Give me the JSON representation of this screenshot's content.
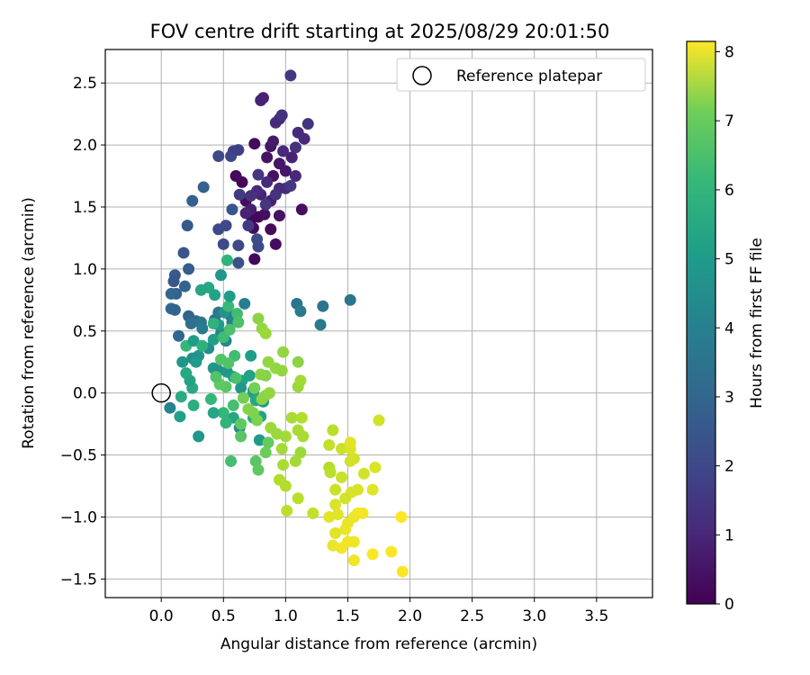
{
  "chart_data": {
    "type": "scatter",
    "title": "FOV centre drift starting at 2025/08/29 20:01:50",
    "xlabel": "Angular distance from reference (arcmin)",
    "ylabel": "Rotation from reference (arcmin)",
    "xlim": [
      -0.45,
      3.95
    ],
    "ylim": [
      -1.65,
      2.77
    ],
    "grid": true,
    "x_ticks": [
      0.0,
      0.5,
      1.0,
      1.5,
      2.0,
      2.5,
      3.0,
      3.5
    ],
    "x_tick_labels": [
      "0.0",
      "0.5",
      "1.0",
      "1.5",
      "2.0",
      "2.5",
      "3.0",
      "3.5"
    ],
    "y_ticks": [
      -1.5,
      -1.0,
      -0.5,
      0.0,
      0.5,
      1.0,
      1.5,
      2.0,
      2.5
    ],
    "y_tick_labels": [
      "−1.5",
      "−1.0",
      "−0.5",
      "0.0",
      "0.5",
      "1.0",
      "1.5",
      "2.0",
      "2.5"
    ],
    "legend": {
      "placement": "top-right",
      "entries": [
        "Reference platepar"
      ]
    },
    "reference_point": {
      "x": 0.0,
      "y": 0.0
    },
    "colorbar": {
      "label": "Hours from first FF file",
      "min": 0,
      "max": 8.15,
      "ticks": [
        0,
        1,
        2,
        3,
        4,
        5,
        6,
        7,
        8
      ],
      "tick_labels": [
        "0",
        "1",
        "2",
        "3",
        "4",
        "5",
        "6",
        "7",
        "8"
      ],
      "colormap": "viridis"
    },
    "series": [
      {
        "points": [
          [
            0.73,
            1.41,
            0.1
          ],
          [
            0.68,
            1.55,
            0.2
          ],
          [
            0.78,
            1.42,
            0.15
          ],
          [
            0.83,
            1.44,
            0.3
          ],
          [
            0.88,
            1.32,
            0.2
          ],
          [
            0.92,
            1.2,
            0.25
          ],
          [
            0.75,
            1.08,
            0.15
          ],
          [
            0.65,
            1.7,
            0.1
          ],
          [
            0.6,
            1.75,
            0.2
          ],
          [
            0.74,
            1.33,
            0.2
          ],
          [
            0.85,
            1.9,
            0.4
          ],
          [
            0.88,
            1.99,
            0.45
          ],
          [
            0.75,
            2.01,
            0.2
          ],
          [
            0.9,
            1.75,
            0.4
          ],
          [
            0.95,
            1.85,
            0.5
          ],
          [
            1.0,
            1.79,
            0.5
          ],
          [
            1.13,
            1.48,
            0.3
          ],
          [
            0.95,
            1.43,
            0.4
          ],
          [
            0.88,
            1.55,
            0.7
          ],
          [
            0.8,
            1.6,
            0.8
          ],
          [
            0.72,
            1.48,
            0.7
          ],
          [
            0.9,
            2.03,
            0.6
          ],
          [
            0.95,
            2.21,
            0.8
          ],
          [
            1.1,
            2.1,
            1.0
          ],
          [
            1.15,
            2.05,
            1.0
          ],
          [
            1.05,
            1.9,
            0.8
          ],
          [
            1.08,
            1.75,
            0.9
          ],
          [
            0.8,
            2.36,
            0.8
          ],
          [
            0.82,
            2.38,
            0.8
          ],
          [
            0.92,
            2.18,
            1.0
          ],
          [
            1.04,
            2.56,
            1.3
          ],
          [
            0.97,
            2.24,
            1.2
          ],
          [
            1.18,
            2.17,
            1.2
          ],
          [
            1.08,
            1.98,
            1.2
          ],
          [
            0.85,
            1.7,
            1.0
          ],
          [
            0.68,
            1.45,
            0.8
          ],
          [
            0.77,
            1.63,
            1.0
          ],
          [
            1.0,
            1.65,
            1.0
          ],
          [
            0.95,
            1.65,
            1.0
          ],
          [
            0.72,
            1.59,
            1.2
          ],
          [
            0.63,
            1.6,
            1.4
          ],
          [
            0.58,
            1.95,
            1.5
          ],
          [
            0.56,
            1.91,
            1.7
          ],
          [
            0.62,
            1.96,
            1.6
          ],
          [
            0.46,
            1.91,
            1.8
          ],
          [
            0.78,
            1.76,
            1.3
          ],
          [
            0.98,
            1.95,
            1.0
          ],
          [
            0.92,
            1.6,
            1.2
          ],
          [
            1.04,
            1.67,
            1.3
          ],
          [
            0.84,
            1.52,
            1.3
          ],
          [
            0.7,
            1.35,
            1.4
          ],
          [
            0.78,
            1.18,
            1.8
          ],
          [
            0.77,
            1.24,
            1.9
          ],
          [
            0.52,
            1.35,
            1.8
          ],
          [
            0.46,
            1.32,
            1.8
          ],
          [
            0.5,
            1.2,
            1.9
          ],
          [
            0.62,
            1.19,
            1.8
          ],
          [
            0.62,
            1.05,
            2.1
          ],
          [
            0.57,
            1.48,
            2.2
          ],
          [
            0.34,
            1.66,
            2.5
          ],
          [
            0.25,
            1.55,
            2.5
          ],
          [
            0.21,
            1.35,
            2.3
          ],
          [
            0.18,
            1.13,
            2.2
          ],
          [
            0.22,
            1.0,
            2.4
          ],
          [
            0.11,
            0.95,
            2.3
          ],
          [
            0.1,
            0.9,
            2.2
          ],
          [
            0.12,
            0.8,
            2.5
          ],
          [
            0.08,
            0.8,
            2.7
          ],
          [
            0.08,
            0.68,
            2.8
          ],
          [
            0.19,
            0.86,
            2.6
          ],
          [
            0.11,
            0.67,
            2.6
          ],
          [
            0.14,
            0.46,
            2.7
          ],
          [
            0.22,
            0.62,
            2.6
          ],
          [
            0.28,
            0.58,
            2.7
          ],
          [
            0.24,
            0.56,
            3.0
          ],
          [
            0.32,
            0.57,
            3.2
          ],
          [
            0.33,
            0.52,
            3.3
          ],
          [
            0.43,
            0.59,
            3.0
          ],
          [
            0.55,
            0.63,
            3.1
          ],
          [
            0.46,
            0.65,
            3.3
          ],
          [
            0.57,
            0.57,
            3.6
          ],
          [
            0.67,
            0.72,
            3.5
          ],
          [
            1.09,
            0.72,
            3.2
          ],
          [
            1.12,
            0.66,
            3.4
          ],
          [
            1.3,
            0.7,
            3.1
          ],
          [
            1.28,
            0.55,
            3.3
          ],
          [
            1.52,
            0.75,
            3.2
          ],
          [
            0.48,
            0.48,
            3.6
          ],
          [
            0.52,
            0.42,
            3.8
          ],
          [
            0.38,
            0.36,
            4.0
          ],
          [
            0.3,
            0.3,
            4.2
          ],
          [
            0.25,
            0.28,
            4.1
          ],
          [
            0.28,
            0.25,
            4.4
          ],
          [
            0.42,
            0.2,
            4.3
          ],
          [
            0.46,
            0.18,
            4.1
          ],
          [
            0.53,
            0.17,
            4.3
          ],
          [
            0.58,
            0.13,
            4.5
          ],
          [
            0.65,
            0.1,
            4.7
          ],
          [
            0.72,
            0.3,
            4.5
          ],
          [
            0.71,
            0.14,
            4.7
          ],
          [
            0.64,
            0.04,
            4.3
          ],
          [
            0.74,
            0.02,
            3.8
          ],
          [
            0.74,
            0.0,
            4.6
          ],
          [
            0.76,
            -0.06,
            4.9
          ],
          [
            0.82,
            -0.07,
            4.2
          ],
          [
            0.8,
            -0.19,
            4.7
          ],
          [
            0.74,
            -0.2,
            5.0
          ],
          [
            0.79,
            -0.38,
            4.4
          ],
          [
            0.63,
            -0.28,
            3.9
          ],
          [
            0.58,
            -0.2,
            4.8
          ],
          [
            0.52,
            -0.24,
            5.3
          ],
          [
            0.5,
            -0.16,
            5.4
          ],
          [
            0.42,
            -0.16,
            4.8
          ],
          [
            0.3,
            -0.35,
            4.3
          ],
          [
            0.15,
            -0.19,
            4.6
          ],
          [
            0.07,
            -0.12,
            3.7
          ],
          [
            0.26,
            -0.1,
            5.1
          ],
          [
            0.16,
            -0.03,
            5.0
          ],
          [
            0.25,
            0.04,
            4.9
          ],
          [
            0.23,
            0.1,
            4.7
          ],
          [
            0.2,
            0.16,
            4.9
          ],
          [
            0.17,
            0.25,
            4.3
          ],
          [
            0.2,
            0.38,
            5.4
          ],
          [
            0.26,
            0.42,
            4.5
          ],
          [
            0.33,
            0.38,
            5.2
          ],
          [
            0.42,
            0.43,
            4.6
          ],
          [
            0.46,
            0.55,
            4.4
          ],
          [
            0.51,
            0.65,
            4.2
          ],
          [
            0.54,
            0.7,
            5.5
          ],
          [
            0.61,
            0.64,
            5.6
          ],
          [
            0.62,
            0.57,
            5.8
          ],
          [
            0.55,
            0.78,
            4.5
          ],
          [
            0.53,
            1.07,
            5.3
          ],
          [
            0.38,
            0.85,
            4.9
          ],
          [
            0.32,
            0.83,
            4.8
          ],
          [
            0.43,
            0.79,
            4.7
          ],
          [
            0.48,
            0.95,
            4.3
          ],
          [
            0.42,
            0.56,
            5.2
          ],
          [
            0.5,
            0.45,
            5.6
          ],
          [
            0.55,
            0.51,
            5.8
          ],
          [
            0.48,
            0.27,
            5.9
          ],
          [
            0.59,
            0.3,
            5.6
          ],
          [
            0.54,
            0.24,
            5.9
          ],
          [
            0.6,
            0.12,
            5.8
          ],
          [
            0.52,
            0.05,
            6.0
          ],
          [
            0.47,
            0.07,
            6.1
          ],
          [
            0.44,
            0.13,
            5.9
          ],
          [
            0.4,
            -0.05,
            5.4
          ],
          [
            0.58,
            -0.1,
            5.7
          ],
          [
            0.64,
            -0.25,
            6.1
          ],
          [
            0.64,
            -0.35,
            6.0
          ],
          [
            0.56,
            -0.55,
            5.7
          ],
          [
            0.76,
            -0.55,
            6.0
          ],
          [
            0.78,
            -0.62,
            6.1
          ],
          [
            0.84,
            -0.48,
            6.3
          ],
          [
            0.86,
            -0.4,
            6.2
          ],
          [
            0.66,
            -0.04,
            6.4
          ],
          [
            0.7,
            -0.13,
            6.6
          ],
          [
            0.74,
            -0.16,
            6.6
          ],
          [
            0.77,
            -0.22,
            6.5
          ],
          [
            0.81,
            -0.05,
            6.7
          ],
          [
            0.84,
            -0.02,
            6.7
          ],
          [
            0.87,
            0.0,
            6.8
          ],
          [
            0.84,
            0.14,
            6.6
          ],
          [
            0.8,
            0.15,
            6.7
          ],
          [
            0.86,
            0.25,
            6.8
          ],
          [
            0.92,
            0.2,
            6.8
          ],
          [
            0.97,
            0.18,
            6.8
          ],
          [
            0.98,
            0.33,
            6.8
          ],
          [
            1.1,
            0.25,
            6.7
          ],
          [
            1.1,
            0.05,
            6.9
          ],
          [
            1.12,
            0.1,
            7.0
          ],
          [
            0.78,
            0.6,
            6.7
          ],
          [
            0.81,
            0.52,
            6.8
          ],
          [
            0.84,
            0.48,
            6.9
          ],
          [
            0.75,
            0.04,
            6.4
          ],
          [
            0.88,
            -0.28,
            6.9
          ],
          [
            0.93,
            -0.33,
            6.9
          ],
          [
            0.97,
            -0.45,
            7.0
          ],
          [
            1.0,
            -0.35,
            7.0
          ],
          [
            1.05,
            -0.2,
            7.1
          ],
          [
            1.1,
            -0.3,
            7.1
          ],
          [
            1.13,
            -0.2,
            7.2
          ],
          [
            1.14,
            -0.35,
            7.1
          ],
          [
            1.12,
            -0.48,
            6.9
          ],
          [
            1.08,
            -0.55,
            7.0
          ],
          [
            0.98,
            -0.58,
            7.1
          ],
          [
            1.0,
            -0.75,
            7.2
          ],
          [
            0.95,
            -0.7,
            7.2
          ],
          [
            1.1,
            -0.85,
            7.3
          ],
          [
            1.01,
            -0.95,
            7.3
          ],
          [
            1.22,
            -0.97,
            7.4
          ],
          [
            1.38,
            -0.3,
            7.3
          ],
          [
            1.35,
            -0.42,
            7.4
          ],
          [
            1.35,
            -0.6,
            7.2
          ],
          [
            1.36,
            -0.64,
            7.3
          ],
          [
            1.45,
            -0.45,
            7.5
          ],
          [
            1.4,
            -0.78,
            7.5
          ],
          [
            1.45,
            -0.68,
            7.5
          ],
          [
            1.52,
            -0.55,
            7.6
          ],
          [
            1.55,
            -0.53,
            7.6
          ],
          [
            1.53,
            -0.8,
            7.7
          ],
          [
            1.58,
            -0.78,
            7.7
          ],
          [
            1.63,
            -0.65,
            7.6
          ],
          [
            1.7,
            -0.78,
            7.8
          ],
          [
            1.72,
            -0.6,
            7.7
          ],
          [
            1.75,
            -0.22,
            7.6
          ],
          [
            1.52,
            -0.45,
            7.7
          ],
          [
            1.52,
            -0.4,
            7.8
          ],
          [
            1.48,
            -0.85,
            7.6
          ],
          [
            1.4,
            -0.9,
            7.7
          ],
          [
            1.42,
            -0.98,
            7.8
          ],
          [
            1.35,
            -1.0,
            7.8
          ],
          [
            1.5,
            -1.05,
            7.9
          ],
          [
            1.48,
            -1.1,
            7.9
          ],
          [
            1.55,
            -1.0,
            7.9
          ],
          [
            1.58,
            -0.97,
            8.0
          ],
          [
            1.62,
            -0.97,
            8.0
          ],
          [
            1.4,
            -1.13,
            7.8
          ],
          [
            1.5,
            -1.2,
            8.0
          ],
          [
            1.55,
            -1.2,
            8.0
          ],
          [
            1.38,
            -1.23,
            7.9
          ],
          [
            1.45,
            -1.25,
            8.0
          ],
          [
            1.55,
            -1.35,
            8.0
          ],
          [
            1.7,
            -1.3,
            8.1
          ],
          [
            1.85,
            -1.28,
            8.1
          ],
          [
            1.94,
            -1.44,
            8.1
          ],
          [
            1.93,
            -1.0,
            8.1
          ]
        ]
      }
    ]
  }
}
